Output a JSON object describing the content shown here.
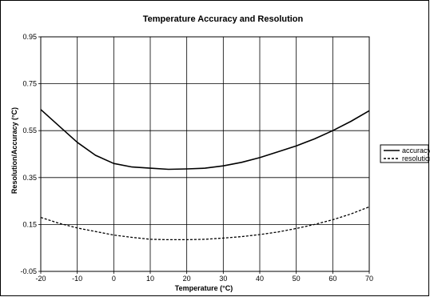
{
  "chart_data": {
    "type": "line",
    "title": "Temperature Accuracy and Resolution",
    "xlabel": "Temperature (°C)",
    "ylabel": "Resolution/Accuracy (°C)",
    "xlim": [
      -20,
      70
    ],
    "ylim": [
      -0.05,
      0.95
    ],
    "x_ticks": [
      -20,
      -10,
      0,
      10,
      20,
      30,
      40,
      50,
      60,
      70
    ],
    "y_ticks": [
      "-0.05",
      "0.15",
      "0.35",
      "0.55",
      "0.75",
      "0.95"
    ],
    "grid": true,
    "legend_position": "right",
    "x": [
      -20,
      -15,
      -10,
      -5,
      0,
      5,
      10,
      15,
      20,
      25,
      30,
      35,
      40,
      45,
      50,
      55,
      60,
      65,
      70
    ],
    "series": [
      {
        "name": "accuracy",
        "style": "solid",
        "color": "#000000",
        "values": [
          0.64,
          0.57,
          0.5,
          0.445,
          0.41,
          0.395,
          0.39,
          0.385,
          0.387,
          0.39,
          0.4,
          0.415,
          0.435,
          0.46,
          0.485,
          0.515,
          0.55,
          0.59,
          0.635
        ]
      },
      {
        "name": "resolution",
        "style": "dashed",
        "color": "#000000",
        "values": [
          0.18,
          0.155,
          0.135,
          0.12,
          0.105,
          0.095,
          0.087,
          0.085,
          0.085,
          0.087,
          0.092,
          0.098,
          0.107,
          0.118,
          0.133,
          0.15,
          0.17,
          0.195,
          0.225
        ]
      }
    ]
  }
}
